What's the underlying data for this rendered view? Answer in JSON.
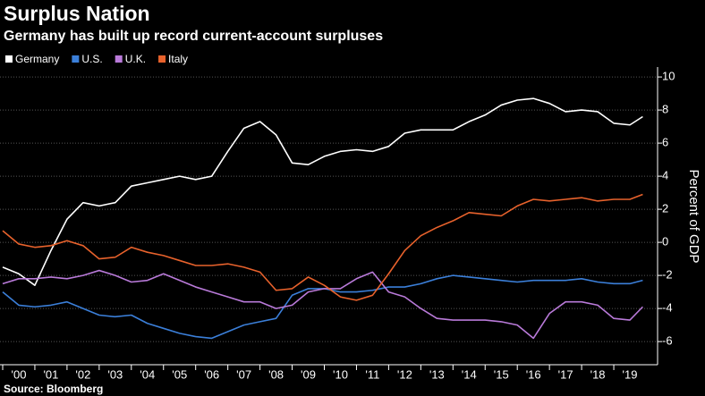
{
  "chart_data": {
    "type": "line",
    "title": "Surplus Nation",
    "subtitle": "Germany has built up record current-account surpluses",
    "y_label": "Percent of GDP",
    "source": "Source: Bloomberg",
    "x": [
      2000,
      2000.5,
      2001,
      2001.5,
      2002,
      2002.5,
      2003,
      2003.5,
      2004,
      2004.5,
      2005,
      2005.5,
      2006,
      2006.5,
      2007,
      2007.5,
      2008,
      2008.5,
      2009,
      2009.5,
      2010,
      2010.5,
      2011,
      2011.5,
      2012,
      2012.5,
      2013,
      2013.5,
      2014,
      2014.5,
      2015,
      2015.5,
      2016,
      2016.5,
      2017,
      2017.5,
      2018,
      2018.5,
      2019,
      2019.5,
      2019.9
    ],
    "series": [
      {
        "name": "Germany",
        "color": "#ffffff",
        "values": [
          -1.5,
          -1.9,
          -2.6,
          -0.5,
          1.4,
          2.4,
          2.2,
          2.4,
          3.4,
          3.6,
          3.8,
          4.0,
          3.8,
          4.0,
          5.5,
          6.9,
          7.3,
          6.5,
          4.8,
          4.7,
          5.2,
          5.5,
          5.6,
          5.5,
          5.8,
          6.6,
          6.8,
          6.8,
          6.8,
          7.3,
          7.7,
          8.3,
          8.6,
          8.7,
          8.4,
          7.9,
          8.0,
          7.9,
          7.2,
          7.1,
          7.6
        ]
      },
      {
        "name": "U.S.",
        "color": "#3b7fd9",
        "values": [
          -3.0,
          -3.8,
          -3.9,
          -3.8,
          -3.6,
          -4.0,
          -4.4,
          -4.5,
          -4.4,
          -4.9,
          -5.2,
          -5.5,
          -5.7,
          -5.8,
          -5.4,
          -5.0,
          -4.8,
          -4.6,
          -3.2,
          -2.8,
          -2.8,
          -3.0,
          -3.0,
          -2.9,
          -2.7,
          -2.7,
          -2.5,
          -2.2,
          -2.0,
          -2.1,
          -2.2,
          -2.3,
          -2.4,
          -2.3,
          -2.3,
          -2.3,
          -2.2,
          -2.4,
          -2.5,
          -2.5,
          -2.3
        ]
      },
      {
        "name": "U.K.",
        "color": "#b97ad9",
        "values": [
          -2.5,
          -2.2,
          -2.2,
          -2.1,
          -2.2,
          -2.0,
          -1.7,
          -2.0,
          -2.4,
          -2.3,
          -1.9,
          -2.3,
          -2.7,
          -3.0,
          -3.3,
          -3.6,
          -3.6,
          -4.0,
          -3.8,
          -3.0,
          -2.8,
          -2.8,
          -2.2,
          -1.8,
          -3.0,
          -3.3,
          -4.0,
          -4.6,
          -4.7,
          -4.7,
          -4.7,
          -4.8,
          -5.0,
          -5.8,
          -4.3,
          -3.6,
          -3.6,
          -3.8,
          -4.6,
          -4.7,
          -3.9
        ]
      },
      {
        "name": "Italy",
        "color": "#e8622c",
        "values": [
          0.7,
          -0.1,
          -0.3,
          -0.2,
          0.1,
          -0.2,
          -1.0,
          -0.9,
          -0.3,
          -0.6,
          -0.8,
          -1.1,
          -1.4,
          -1.4,
          -1.3,
          -1.5,
          -1.8,
          -2.9,
          -2.8,
          -2.1,
          -2.6,
          -3.3,
          -3.5,
          -3.2,
          -1.9,
          -0.5,
          0.4,
          0.9,
          1.3,
          1.8,
          1.7,
          1.6,
          2.2,
          2.6,
          2.5,
          2.6,
          2.7,
          2.5,
          2.6,
          2.6,
          2.9
        ]
      }
    ],
    "xlim": [
      2000,
      2020
    ],
    "xticks": [
      {
        "value": 2000,
        "label": "'00"
      },
      {
        "value": 2001,
        "label": "'01"
      },
      {
        "value": 2002,
        "label": "'02"
      },
      {
        "value": 2003,
        "label": "'03"
      },
      {
        "value": 2004,
        "label": "'04"
      },
      {
        "value": 2005,
        "label": "'05"
      },
      {
        "value": 2006,
        "label": "'06"
      },
      {
        "value": 2007,
        "label": "'07"
      },
      {
        "value": 2008,
        "label": "'08"
      },
      {
        "value": 2009,
        "label": "'09"
      },
      {
        "value": 2010,
        "label": "'10"
      },
      {
        "value": 2011,
        "label": "'11"
      },
      {
        "value": 2012,
        "label": "'12"
      },
      {
        "value": 2013,
        "label": "'13"
      },
      {
        "value": 2014,
        "label": "'14"
      },
      {
        "value": 2015,
        "label": "'15"
      },
      {
        "value": 2016,
        "label": "'16"
      },
      {
        "value": 2017,
        "label": "'17"
      },
      {
        "value": 2018,
        "label": "'18"
      },
      {
        "value": 2019,
        "label": "'19"
      }
    ],
    "ylim": [
      -7.4,
      10.6
    ],
    "yticks": [
      -6,
      -4,
      -2,
      0,
      2,
      4,
      6,
      8,
      10
    ],
    "grid": true
  }
}
